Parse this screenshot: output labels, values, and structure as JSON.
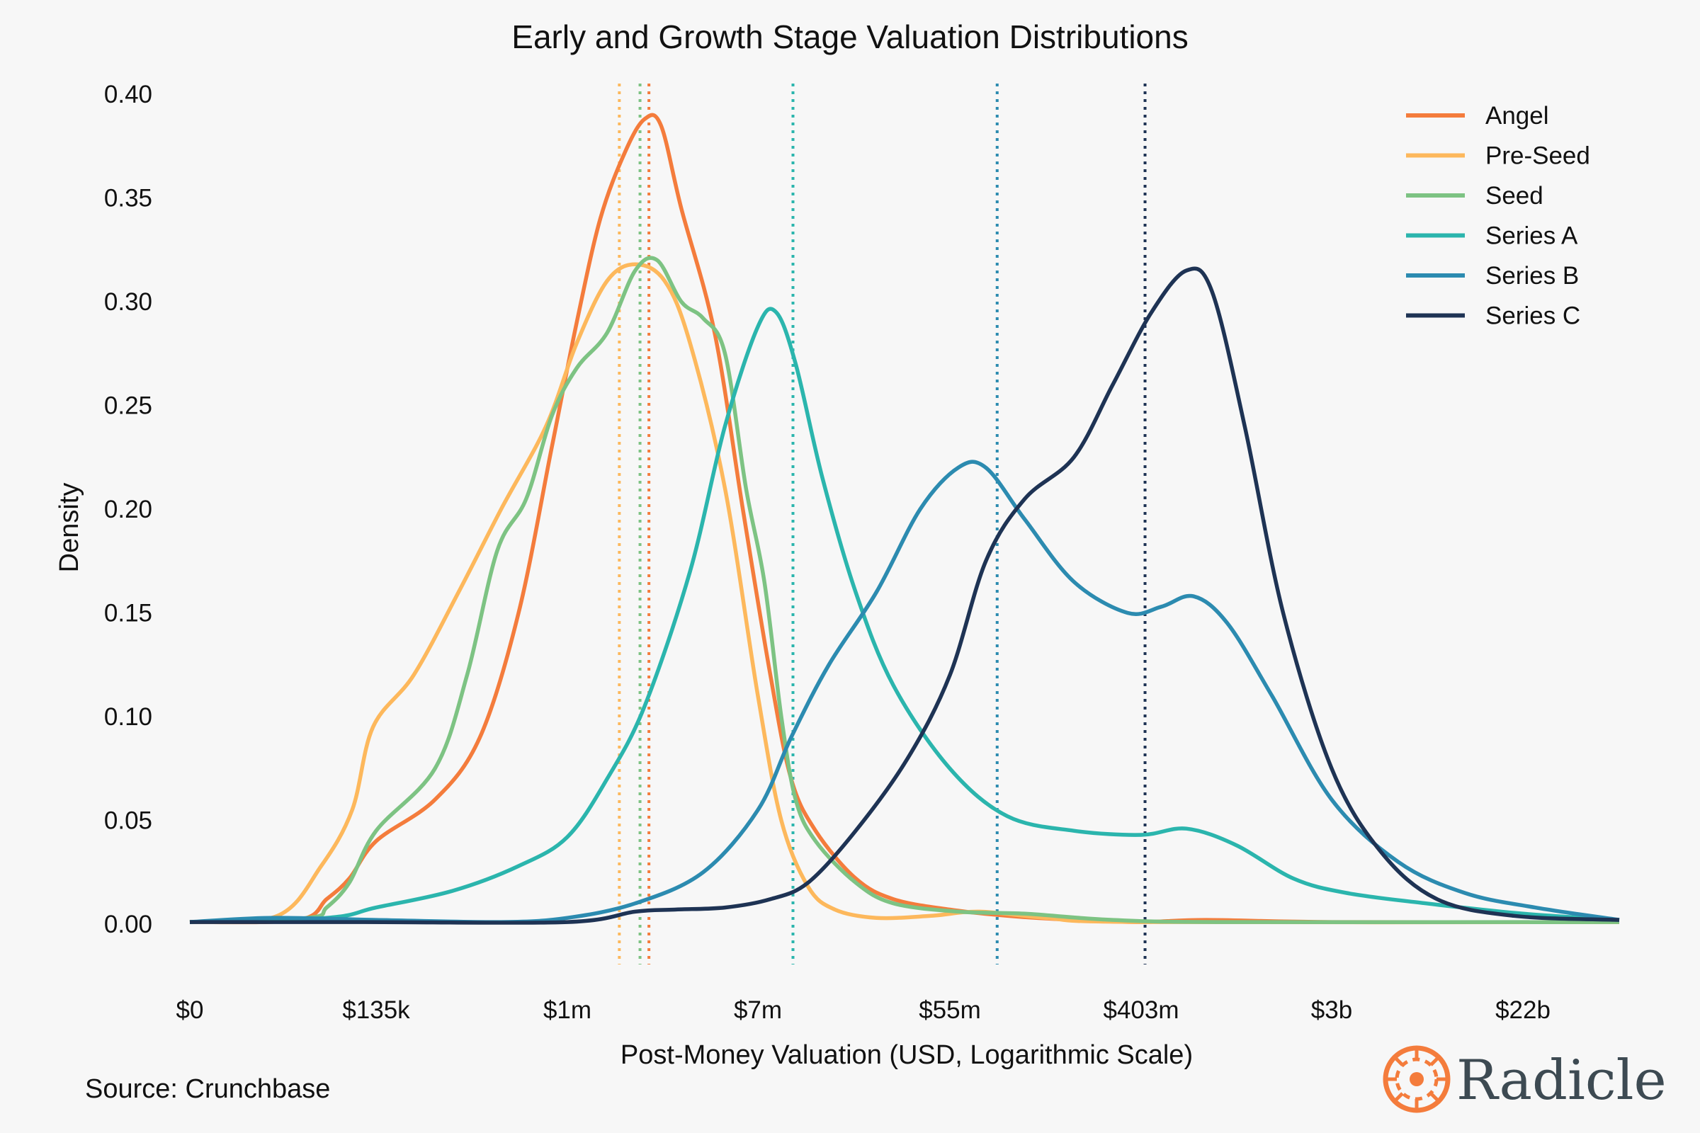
{
  "title": "Early and Growth Stage Valuation Distributions",
  "source": "Source: Crunchbase",
  "logo_text": "Radicle",
  "chart_data": {
    "type": "line",
    "title": "Early and Growth Stage Valuation Distributions",
    "xlabel": "Post-Money Valuation (USD, Logarithmic Scale)",
    "ylabel": "Density",
    "x_scale": "log",
    "x_ticks": [
      {
        "label": "$0",
        "value": 1
      },
      {
        "label": "$135k",
        "value": 135000
      },
      {
        "label": "$1m",
        "value": 1000000
      },
      {
        "label": "$7m",
        "value": 7000000
      },
      {
        "label": "$55m",
        "value": 55000000
      },
      {
        "label": "$403m",
        "value": 403000000
      },
      {
        "label": "$3b",
        "value": 3000000000
      },
      {
        "label": "$22b",
        "value": 22000000000
      }
    ],
    "y_ticks": [
      "0.00",
      "0.05",
      "0.10",
      "0.15",
      "0.20",
      "0.25",
      "0.30",
      "0.35",
      "0.40"
    ],
    "ylim": [
      -0.018,
      0.405
    ],
    "grid": false,
    "legend_position": "top-right",
    "series": [
      {
        "name": "Angel",
        "color": "#f47c3c",
        "median": 2300000,
        "points": [
          [
            1,
            0.001
          ],
          [
            20000,
            0.002
          ],
          [
            40000,
            0.012
          ],
          [
            70000,
            0.022
          ],
          [
            135000,
            0.04
          ],
          [
            250000,
            0.06
          ],
          [
            400000,
            0.09
          ],
          [
            600000,
            0.15
          ],
          [
            850000,
            0.23
          ],
          [
            1100000,
            0.29
          ],
          [
            1400000,
            0.34
          ],
          [
            1800000,
            0.372
          ],
          [
            2200000,
            0.388
          ],
          [
            2600000,
            0.385
          ],
          [
            3200000,
            0.345
          ],
          [
            4500000,
            0.285
          ],
          [
            6000000,
            0.2
          ],
          [
            8000000,
            0.12
          ],
          [
            10000000,
            0.07
          ],
          [
            13000000,
            0.045
          ],
          [
            20000000,
            0.022
          ],
          [
            30000000,
            0.012
          ],
          [
            55000000,
            0.007
          ],
          [
            100000000,
            0.004
          ],
          [
            200000000,
            0.002
          ],
          [
            403000000,
            0.001
          ],
          [
            800000000,
            0.002
          ],
          [
            3000000000,
            0.001
          ],
          [
            60000000000,
            0.001
          ]
        ]
      },
      {
        "name": "Pre-Seed",
        "color": "#fdb85c",
        "median": 1700000,
        "points": [
          [
            1,
            0.001
          ],
          [
            12000,
            0.004
          ],
          [
            35000,
            0.028
          ],
          [
            75000,
            0.055
          ],
          [
            125000,
            0.095
          ],
          [
            200000,
            0.12
          ],
          [
            320000,
            0.16
          ],
          [
            500000,
            0.2
          ],
          [
            800000,
            0.24
          ],
          [
            1100000,
            0.28
          ],
          [
            1500000,
            0.31
          ],
          [
            2000000,
            0.318
          ],
          [
            2700000,
            0.31
          ],
          [
            3500000,
            0.28
          ],
          [
            5000000,
            0.21
          ],
          [
            7000000,
            0.11
          ],
          [
            9000000,
            0.05
          ],
          [
            12000000,
            0.018
          ],
          [
            16000000,
            0.007
          ],
          [
            25000000,
            0.003
          ],
          [
            45000000,
            0.004
          ],
          [
            75000000,
            0.006
          ],
          [
            150000000,
            0.003
          ],
          [
            400000000,
            0.001
          ],
          [
            60000000000,
            0.001
          ]
        ]
      },
      {
        "name": "Seed",
        "color": "#7dc383",
        "median": 2100000,
        "points": [
          [
            1,
            0.001
          ],
          [
            25000,
            0.003
          ],
          [
            40000,
            0.008
          ],
          [
            70000,
            0.02
          ],
          [
            135000,
            0.045
          ],
          [
            250000,
            0.075
          ],
          [
            350000,
            0.12
          ],
          [
            480000,
            0.18
          ],
          [
            650000,
            0.205
          ],
          [
            850000,
            0.245
          ],
          [
            1100000,
            0.268
          ],
          [
            1500000,
            0.285
          ],
          [
            2000000,
            0.315
          ],
          [
            2500000,
            0.32
          ],
          [
            3200000,
            0.3
          ],
          [
            4000000,
            0.292
          ],
          [
            5000000,
            0.275
          ],
          [
            6200000,
            0.21
          ],
          [
            7500000,
            0.165
          ],
          [
            9000000,
            0.1
          ],
          [
            10500000,
            0.06
          ],
          [
            13000000,
            0.04
          ],
          [
            20000000,
            0.02
          ],
          [
            30000000,
            0.01
          ],
          [
            60000000,
            0.006
          ],
          [
            120000000,
            0.005
          ],
          [
            300000000,
            0.002
          ],
          [
            1000000000,
            0.001
          ],
          [
            60000000000,
            0.001
          ]
        ]
      },
      {
        "name": "Series A",
        "color": "#2bb5ad",
        "median": 10200000,
        "points": [
          [
            1,
            0.001
          ],
          [
            40000,
            0.003
          ],
          [
            135000,
            0.008
          ],
          [
            300000,
            0.016
          ],
          [
            600000,
            0.028
          ],
          [
            1000000,
            0.042
          ],
          [
            1500000,
            0.07
          ],
          [
            2200000,
            0.105
          ],
          [
            3500000,
            0.17
          ],
          [
            5000000,
            0.24
          ],
          [
            7000000,
            0.288
          ],
          [
            8500000,
            0.295
          ],
          [
            10500000,
            0.27
          ],
          [
            14000000,
            0.215
          ],
          [
            20000000,
            0.16
          ],
          [
            30000000,
            0.115
          ],
          [
            55000000,
            0.075
          ],
          [
            100000000,
            0.052
          ],
          [
            200000000,
            0.045
          ],
          [
            403000000,
            0.043
          ],
          [
            650000000,
            0.046
          ],
          [
            1100000000,
            0.038
          ],
          [
            2000000000,
            0.022
          ],
          [
            3500000000,
            0.015
          ],
          [
            8000000000,
            0.01
          ],
          [
            22000000000,
            0.005
          ],
          [
            60000000000,
            0.002
          ]
        ]
      },
      {
        "name": "Series B",
        "color": "#2c8bb0",
        "median": 90000000,
        "points": [
          [
            1,
            0.001
          ],
          [
            10000,
            0.003
          ],
          [
            135000,
            0.002
          ],
          [
            500000,
            0.001
          ],
          [
            1000000,
            0.003
          ],
          [
            2000000,
            0.01
          ],
          [
            4000000,
            0.025
          ],
          [
            7000000,
            0.055
          ],
          [
            10000000,
            0.09
          ],
          [
            15000000,
            0.125
          ],
          [
            25000000,
            0.16
          ],
          [
            40000000,
            0.2
          ],
          [
            60000000,
            0.22
          ],
          [
            80000000,
            0.22
          ],
          [
            120000000,
            0.195
          ],
          [
            200000000,
            0.165
          ],
          [
            350000000,
            0.15
          ],
          [
            500000000,
            0.153
          ],
          [
            700000000,
            0.158
          ],
          [
            1000000000,
            0.145
          ],
          [
            1600000000,
            0.11
          ],
          [
            3000000000,
            0.06
          ],
          [
            6000000000,
            0.03
          ],
          [
            12000000000,
            0.015
          ],
          [
            25000000000,
            0.008
          ],
          [
            60000000000,
            0.002
          ]
        ]
      },
      {
        "name": "Series C",
        "color": "#1e3354",
        "median": 420000000,
        "points": [
          [
            1,
            0.001
          ],
          [
            100000,
            0.001
          ],
          [
            1000000,
            0.001
          ],
          [
            2000000,
            0.006
          ],
          [
            3000000,
            0.007
          ],
          [
            5000000,
            0.008
          ],
          [
            8000000,
            0.012
          ],
          [
            12000000,
            0.02
          ],
          [
            20000000,
            0.045
          ],
          [
            35000000,
            0.08
          ],
          [
            55000000,
            0.12
          ],
          [
            80000000,
            0.175
          ],
          [
            120000000,
            0.205
          ],
          [
            200000000,
            0.225
          ],
          [
            300000000,
            0.26
          ],
          [
            450000000,
            0.295
          ],
          [
            650000000,
            0.315
          ],
          [
            850000000,
            0.305
          ],
          [
            1200000000,
            0.24
          ],
          [
            1800000000,
            0.15
          ],
          [
            3000000000,
            0.075
          ],
          [
            5000000000,
            0.035
          ],
          [
            9000000000,
            0.012
          ],
          [
            20000000000,
            0.004
          ],
          [
            60000000000,
            0.002
          ]
        ]
      }
    ]
  }
}
